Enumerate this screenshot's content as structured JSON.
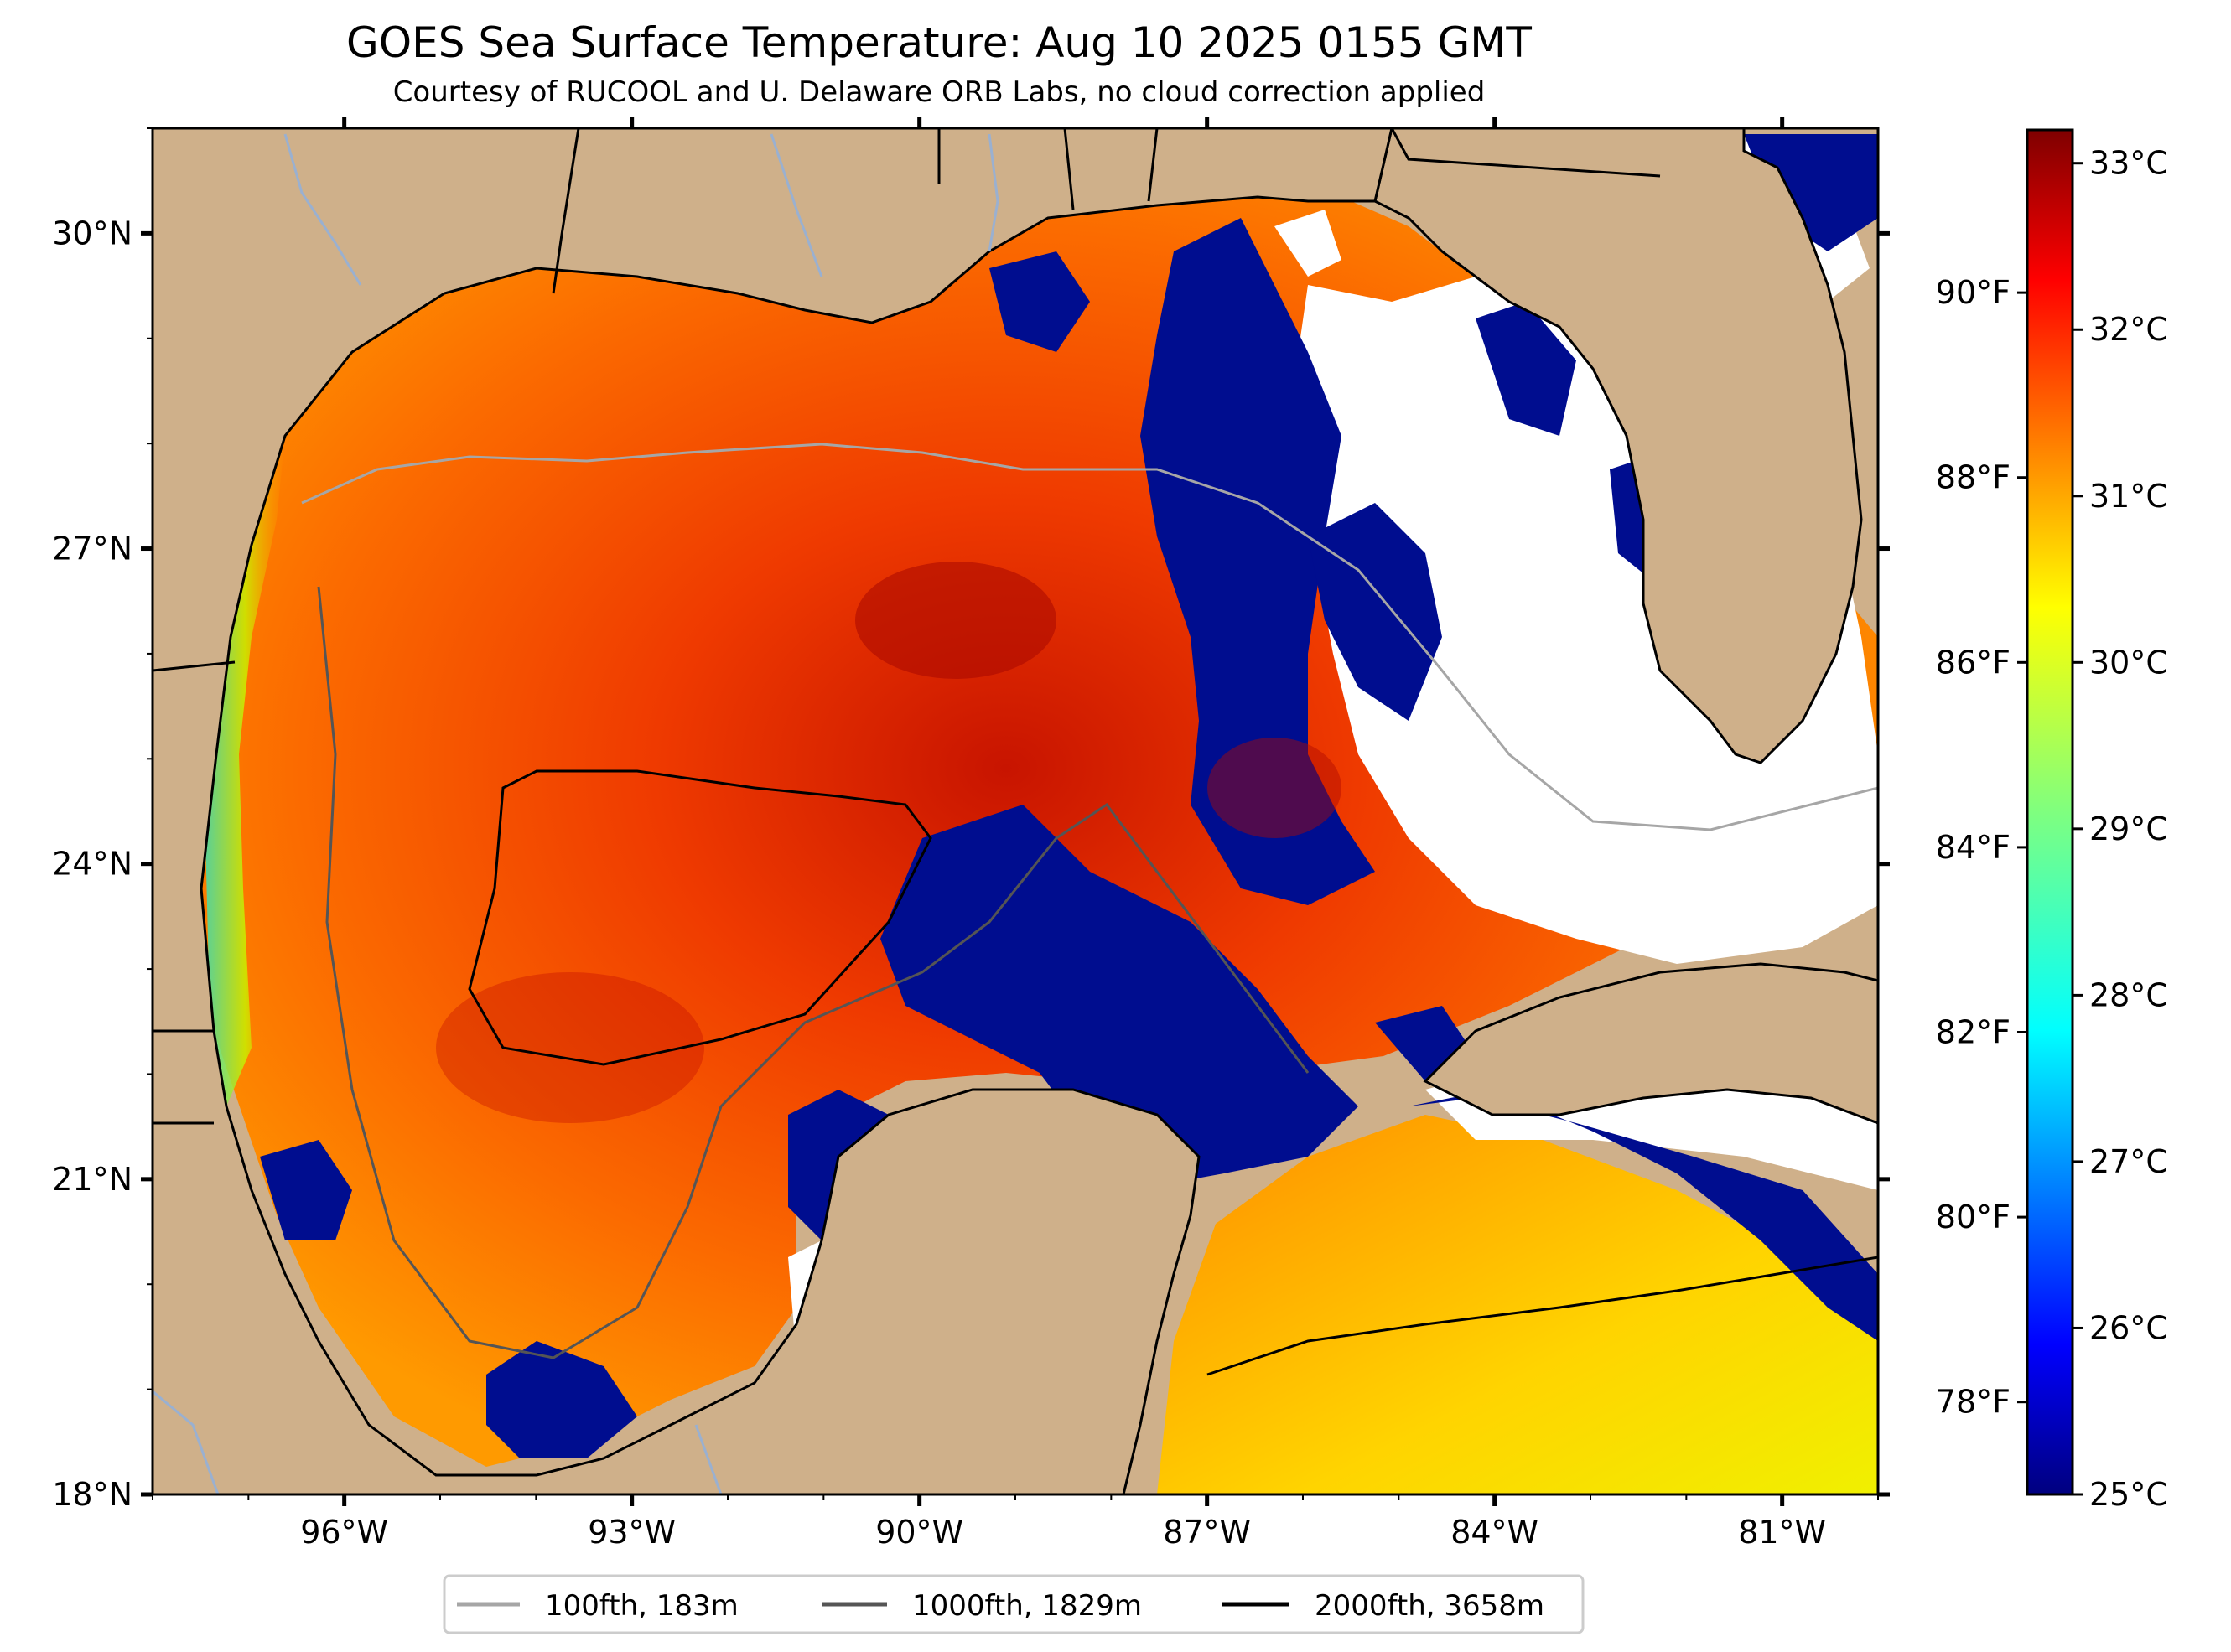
{
  "title": "GOES Sea Surface Temperature: Aug 10 2025 0155 GMT",
  "subtitle": "Courtesy of RUCOOL and U. Delaware ORB Labs, no cloud correction applied",
  "map": {
    "lon_range": [
      -98,
      -80
    ],
    "lat_range": [
      18,
      31
    ],
    "lat_labels": [
      "30°N",
      "27°N",
      "24°N",
      "21°N",
      "18°N"
    ],
    "lat_values": [
      30,
      27,
      24,
      21,
      18
    ],
    "lon_labels": [
      "96°W",
      "93°W",
      "90°W",
      "87°W",
      "84°W",
      "81°W"
    ],
    "lon_values": [
      -96,
      -93,
      -90,
      -87,
      -84,
      -81
    ],
    "colors": {
      "land": "#cfb08a",
      "cloud": "#ffffff",
      "border": "#000000",
      "rivers": "#9ab0d0"
    }
  },
  "colorbar": {
    "celsius_labels": [
      "33°C",
      "32°C",
      "31°C",
      "30°C",
      "29°C",
      "28°C",
      "27°C",
      "26°C",
      "25°C"
    ],
    "celsius_values": [
      33,
      32,
      31,
      30,
      29,
      28,
      27,
      26,
      25
    ],
    "fahrenheit_labels": [
      "90°F",
      "88°F",
      "86°F",
      "84°F",
      "82°F",
      "80°F",
      "78°F"
    ],
    "fahrenheit_values": [
      90,
      88,
      86,
      84,
      82,
      80,
      78
    ],
    "range_c": [
      25,
      33.2
    ],
    "colormap": "jet"
  },
  "legend": {
    "items": [
      {
        "label": "100fth, 183m",
        "color": "#a6a6a6"
      },
      {
        "label": "1000fth, 1829m",
        "color": "#555555"
      },
      {
        "label": "2000fth, 3658m",
        "color": "#000000"
      }
    ]
  }
}
